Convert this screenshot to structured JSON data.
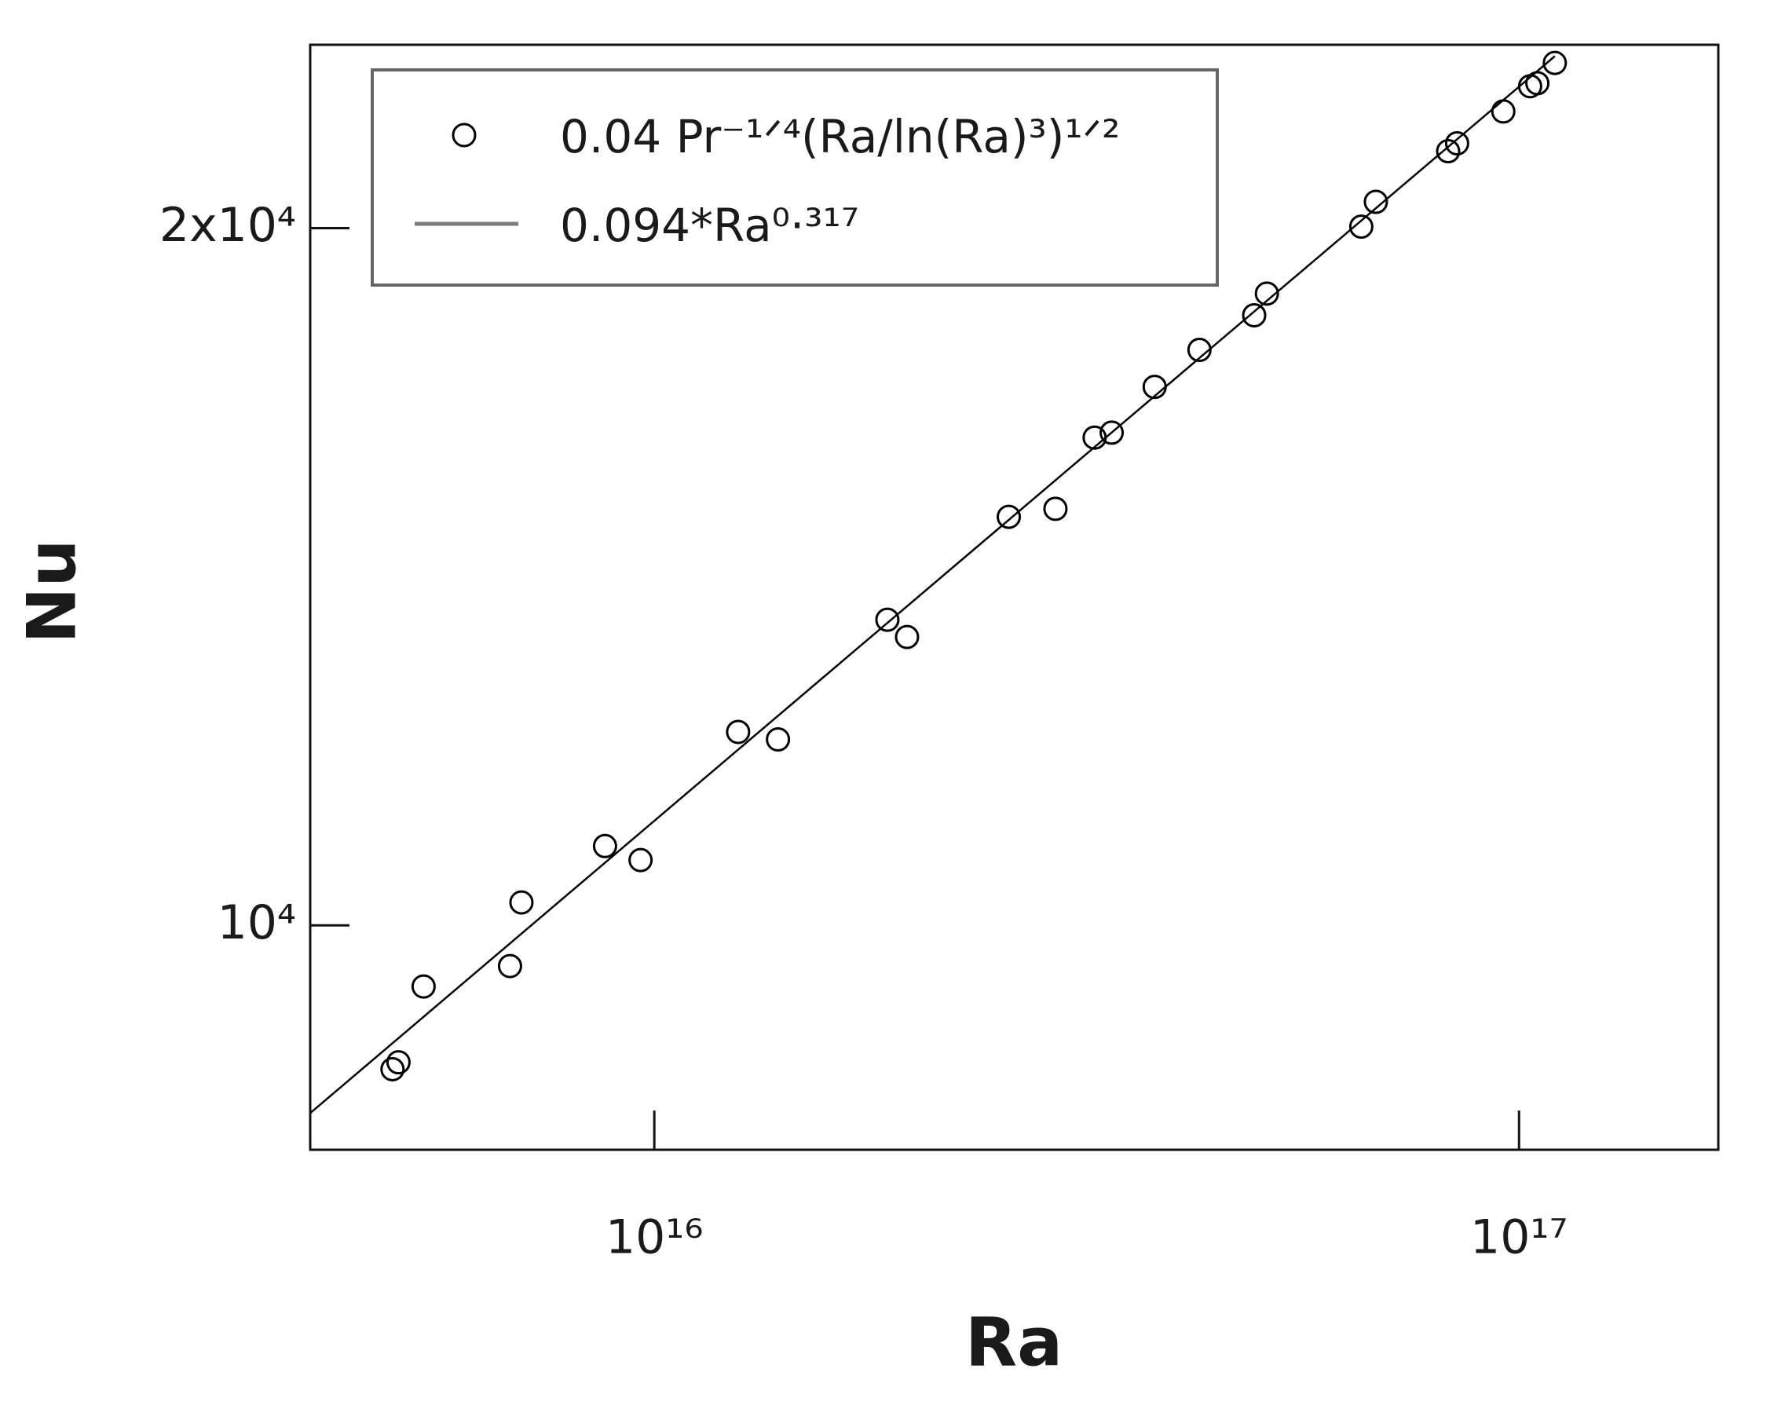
{
  "chart_data": {
    "type": "scatter",
    "xlabel": "Ra",
    "ylabel": "Nu",
    "xscale": "log",
    "yscale": "log",
    "xlim": [
      4000000000000000.0,
      1.7e+17
    ],
    "ylim": [
      8000,
      24000
    ],
    "xticks": [
      {
        "value": 1e+16,
        "label": "10¹⁶"
      },
      {
        "value": 1e+17,
        "label": "10¹⁷"
      }
    ],
    "yticks": [
      {
        "value": 10000,
        "label": "10⁴"
      },
      {
        "value": 20000,
        "label": "2x10⁴"
      }
    ],
    "legend": "upper left",
    "series": [
      {
        "name": "0.04 Pr⁻¹ᐟ⁴(Ra/ln(Ra)³)¹ᐟ²",
        "type": "scatter",
        "color": "#000000",
        "x": [
          4980000000000000.0,
          5060000000000000.0,
          5410000000000000.0,
          6810000000000000.0,
          7020000000000000.0,
          8770000000000000.0,
          9640000000000000.0,
          1.25e+16,
          1.39e+16,
          1.86e+16,
          1.96e+16,
          2.57e+16,
          2.91e+16,
          3.23e+16,
          3.38e+16,
          3.79e+16,
          4.27e+16,
          4.94e+16,
          5.11e+16,
          6.57e+16,
          6.83e+16,
          8.28e+16,
          8.48e+16,
          9.59e+16,
          1.03e+17,
          1.05e+17,
          1.1e+17
        ],
        "values": [
          8667,
          8727,
          9410,
          9603,
          10230,
          10820,
          10670,
          12120,
          12030,
          13550,
          13320,
          15010,
          15130,
          16240,
          16320,
          17080,
          17720,
          18340,
          18740,
          20030,
          20530,
          21590,
          21760,
          22460,
          23030,
          23100,
          23570
        ]
      },
      {
        "name": "0.094*Ra⁰·³¹⁷",
        "type": "line",
        "color": "#000000",
        "legend_color": "#7a7a7a",
        "x": [
          4000000000000000.0,
          1e+16,
          1e+17,
          1.1e+17
        ],
        "values": [
          8297,
          11095,
          23020,
          23730
        ]
      }
    ]
  }
}
